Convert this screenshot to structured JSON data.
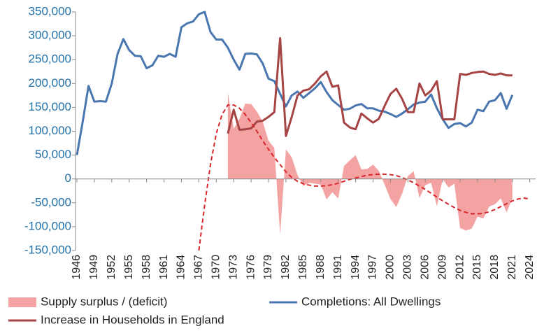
{
  "chart_data": {
    "type": "line",
    "x": [
      1946,
      1947,
      1948,
      1949,
      1950,
      1951,
      1952,
      1953,
      1954,
      1955,
      1956,
      1957,
      1958,
      1959,
      1960,
      1961,
      1962,
      1963,
      1964,
      1965,
      1966,
      1967,
      1968,
      1969,
      1970,
      1971,
      1972,
      1973,
      1974,
      1975,
      1976,
      1977,
      1978,
      1979,
      1980,
      1981,
      1982,
      1983,
      1984,
      1985,
      1986,
      1987,
      1988,
      1989,
      1990,
      1991,
      1992,
      1993,
      1994,
      1995,
      1996,
      1997,
      1998,
      1999,
      2000,
      2001,
      2002,
      2003,
      2004,
      2005,
      2006,
      2007,
      2008,
      2009,
      2010,
      2011,
      2012,
      2013,
      2014,
      2015,
      2016,
      2017,
      2018,
      2019,
      2020,
      2021,
      2022,
      2023,
      2024
    ],
    "series": [
      {
        "name": "Supply surplus / (deficit)",
        "type": "area",
        "color": "#f4a3a3",
        "values": [
          null,
          null,
          null,
          null,
          null,
          null,
          null,
          null,
          null,
          null,
          null,
          null,
          null,
          null,
          null,
          null,
          null,
          null,
          null,
          null,
          null,
          null,
          null,
          null,
          null,
          null,
          180000,
          105000,
          126000,
          158000,
          157000,
          141000,
          120000,
          80000,
          65000,
          -117000,
          62000,
          45000,
          8000,
          -15000,
          -8000,
          -10000,
          -12000,
          -43000,
          -28000,
          -41000,
          27000,
          39000,
          50000,
          20000,
          21000,
          30000,
          17000,
          -12000,
          -42000,
          -59000,
          -31000,
          6000,
          16000,
          -40000,
          -13000,
          -8000,
          -57000,
          0,
          -18000,
          -10000,
          -103000,
          -108000,
          -104000,
          -79000,
          -83000,
          -58000,
          -53000,
          -41000,
          -70000,
          -41000,
          null,
          null,
          null
        ]
      },
      {
        "name": "Completions: All Dwellings",
        "type": "line",
        "color": "#4a76b0",
        "values": [
          50000,
          120000,
          195000,
          162000,
          163000,
          162000,
          200000,
          262000,
          293000,
          270000,
          258000,
          257000,
          232000,
          238000,
          258000,
          256000,
          262000,
          256000,
          318000,
          326000,
          330000,
          345000,
          350000,
          308000,
          292000,
          292000,
          275000,
          250000,
          229000,
          262000,
          263000,
          261000,
          242000,
          210000,
          205000,
          178000,
          152000,
          175000,
          183000,
          170000,
          180000,
          190000,
          203000,
          182000,
          165000,
          155000,
          145000,
          147000,
          154000,
          157000,
          148000,
          148000,
          143000,
          141000,
          136000,
          130000,
          137000,
          146000,
          156000,
          160000,
          162000,
          177000,
          148000,
          125000,
          107000,
          115000,
          117000,
          110000,
          118000,
          145000,
          142000,
          162000,
          165000,
          180000,
          147000,
          176000,
          null,
          null,
          null
        ]
      },
      {
        "name": "Increase in Households in England",
        "type": "line",
        "color": "#a64444",
        "values": [
          null,
          null,
          null,
          null,
          null,
          null,
          null,
          null,
          null,
          null,
          null,
          null,
          null,
          null,
          null,
          null,
          null,
          null,
          null,
          null,
          null,
          null,
          null,
          null,
          null,
          null,
          95000,
          145000,
          103000,
          104000,
          106000,
          120000,
          122000,
          130000,
          140000,
          295000,
          90000,
          130000,
          175000,
          185000,
          188000,
          200000,
          215000,
          225000,
          193000,
          196000,
          118000,
          108000,
          104000,
          137000,
          127000,
          118000,
          126000,
          153000,
          178000,
          189000,
          168000,
          140000,
          140000,
          200000,
          175000,
          185000,
          205000,
          125000,
          125000,
          125000,
          220000,
          218000,
          222000,
          224000,
          225000,
          220000,
          218000,
          221000,
          217000,
          217000,
          null,
          null,
          null
        ]
      },
      {
        "type": "line",
        "dashed": true,
        "color": "#d9262b",
        "values": [
          null,
          null,
          null,
          null,
          null,
          null,
          null,
          null,
          null,
          null,
          null,
          null,
          null,
          null,
          null,
          null,
          null,
          null,
          null,
          null,
          null,
          -150000,
          -55000,
          30000,
          95000,
          135000,
          155000,
          155000,
          148000,
          135000,
          118000,
          100000,
          80000,
          62000,
          45000,
          30000,
          15000,
          3000,
          -5000,
          -10000,
          -13000,
          -15000,
          -15000,
          -14000,
          -12000,
          -9000,
          -5000,
          -1000,
          2000,
          5000,
          8000,
          9000,
          10000,
          10000,
          9000,
          7000,
          3000,
          -2000,
          -8000,
          -15000,
          -22000,
          -30000,
          -38000,
          -46000,
          -53000,
          -60000,
          -66000,
          -70000,
          -73000,
          -73000,
          -72000,
          -69000,
          -64000,
          -58000,
          -52000,
          -46000,
          -42000,
          -40000,
          -42000
        ]
      }
    ],
    "xlim": [
      1946,
      2025
    ],
    "xticks": [
      1946,
      1949,
      1952,
      1955,
      1958,
      1961,
      1964,
      1967,
      1970,
      1973,
      1976,
      1979,
      1982,
      1985,
      1988,
      1991,
      1994,
      1997,
      2000,
      2003,
      2006,
      2009,
      2012,
      2015,
      2018,
      2021,
      2024
    ],
    "ylim": [
      -150000,
      350000
    ],
    "yticks": [
      {
        "value": 350000,
        "label": "350,000"
      },
      {
        "value": 300000,
        "label": "300,000"
      },
      {
        "value": 250000,
        "label": "250,000"
      },
      {
        "value": 200000,
        "label": "200,000"
      },
      {
        "value": 150000,
        "label": "150,000"
      },
      {
        "value": 100000,
        "label": "100,000"
      },
      {
        "value": 50000,
        "label": "50,000"
      },
      0,
      {
        "value": -50000,
        "label": "-50,000"
      },
      {
        "value": -100000,
        "label": "-100,000"
      },
      {
        "value": -150000,
        "label": "-150,000"
      }
    ],
    "grid": false
  }
}
